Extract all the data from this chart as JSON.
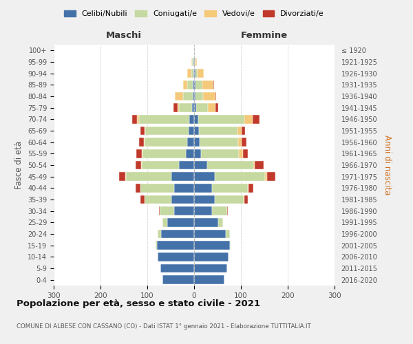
{
  "age_groups": [
    "0-4",
    "5-9",
    "10-14",
    "15-19",
    "20-24",
    "25-29",
    "30-34",
    "35-39",
    "40-44",
    "45-49",
    "50-54",
    "55-59",
    "60-64",
    "65-69",
    "70-74",
    "75-79",
    "80-84",
    "85-89",
    "90-94",
    "95-99",
    "100+"
  ],
  "birth_years": [
    "2016-2020",
    "2011-2015",
    "2006-2010",
    "2001-2005",
    "1996-2000",
    "1991-1995",
    "1986-1990",
    "1981-1985",
    "1976-1980",
    "1971-1975",
    "1966-1970",
    "1961-1965",
    "1956-1960",
    "1951-1955",
    "1946-1950",
    "1941-1945",
    "1936-1940",
    "1931-1935",
    "1926-1930",
    "1921-1925",
    "≤ 1920"
  ],
  "maschi": {
    "celibi": [
      68,
      72,
      78,
      80,
      70,
      58,
      42,
      48,
      42,
      48,
      32,
      18,
      14,
      12,
      10,
      4,
      3,
      3,
      2,
      2,
      0
    ],
    "coniugati": [
      0,
      0,
      0,
      2,
      8,
      10,
      32,
      58,
      72,
      98,
      80,
      92,
      92,
      92,
      108,
      28,
      20,
      12,
      4,
      2,
      0
    ],
    "vedovi": [
      0,
      0,
      0,
      0,
      0,
      0,
      0,
      0,
      1,
      1,
      1,
      2,
      2,
      2,
      4,
      4,
      18,
      8,
      8,
      2,
      0
    ],
    "divorziati": [
      0,
      0,
      0,
      0,
      0,
      0,
      1,
      8,
      10,
      14,
      12,
      12,
      10,
      8,
      10,
      8,
      0,
      0,
      0,
      0,
      0
    ]
  },
  "femmine": {
    "nubili": [
      65,
      70,
      74,
      76,
      68,
      52,
      38,
      44,
      38,
      44,
      28,
      14,
      12,
      10,
      9,
      4,
      3,
      3,
      3,
      2,
      0
    ],
    "coniugate": [
      0,
      0,
      0,
      2,
      8,
      10,
      32,
      62,
      76,
      108,
      98,
      82,
      82,
      82,
      98,
      26,
      16,
      14,
      5,
      1,
      0
    ],
    "vedove": [
      0,
      0,
      0,
      0,
      0,
      0,
      0,
      1,
      2,
      4,
      4,
      8,
      8,
      9,
      18,
      16,
      26,
      24,
      12,
      3,
      0
    ],
    "divorziate": [
      0,
      0,
      0,
      0,
      0,
      0,
      2,
      8,
      10,
      18,
      18,
      10,
      10,
      8,
      14,
      6,
      2,
      2,
      0,
      0,
      0
    ]
  },
  "colors": {
    "celibi": "#4472a8",
    "coniugati": "#c5d9a0",
    "vedovi": "#f5c97a",
    "divorziati": "#c0392b"
  },
  "xlim": 300,
  "title": "Popolazione per età, sesso e stato civile - 2021",
  "subtitle": "COMUNE DI ALBESE CON CASSANO (CO) - Dati ISTAT 1° gennaio 2021 - Elaborazione TUTTITALIA.IT",
  "xlabel_left": "Maschi",
  "xlabel_right": "Femmine",
  "ylabel_left": "Fasce di età",
  "ylabel_right": "Anni di nascita",
  "legend_labels": [
    "Celibi/Nubili",
    "Coniugati/e",
    "Vedovi/e",
    "Divorziati/e"
  ],
  "bg_color": "#f0f0f0",
  "plot_bg_color": "#ffffff"
}
